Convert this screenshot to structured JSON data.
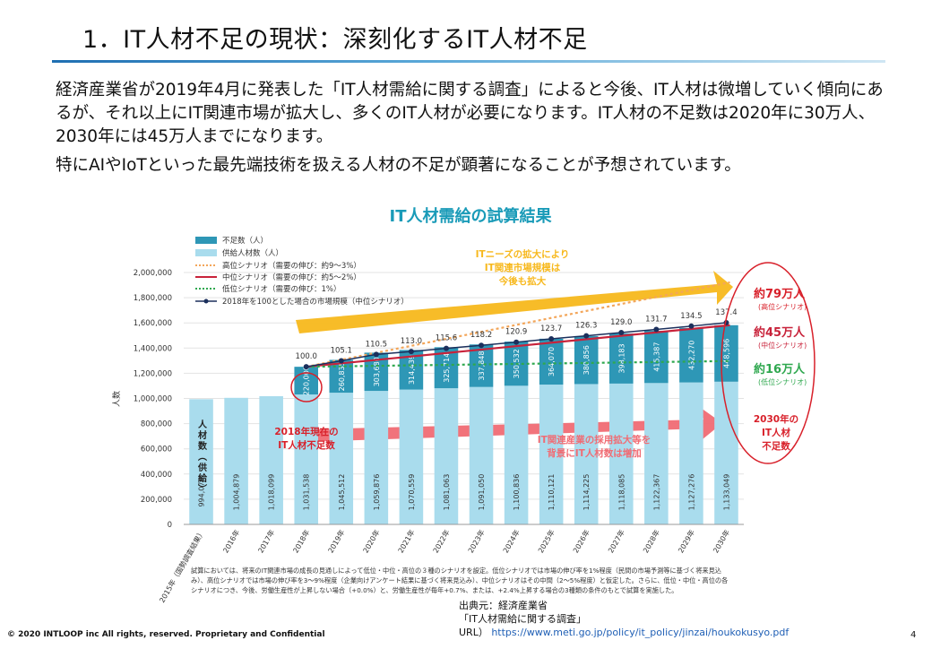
{
  "slide": {
    "title": "1．IT人材不足の現状：深刻化するIT人材不足",
    "intro_paragraph_1": "経済産業省が2019年4月に発表した「IT人材需給に関する調査」によると今後、IT人材は微増していく傾向にあるが、それ以上にIT関連市場が拡大し、多くのIT人材が必要になります。IT人材の不足数は2020年に30万人、2030年には45万人までになります。",
    "intro_paragraph_2": "特にAIやIoTといった最先端技術を扱える人材の不足が顕著になることが予想されています。",
    "footer_copyright": "© 2020 INTLOOP inc All rights, reserved.  Proprietary and Confidential",
    "source_line_1": "出典元：経済産業省",
    "source_line_2": "「IT人材需給に関する調査」",
    "source_url_label": "URL）",
    "source_url": "https://www.meti.go.jp/policy/it_policy/jinzai/houkokusyo.pdf",
    "page_number": "4"
  },
  "chart_data": {
    "type": "bar",
    "title": "IT人材需給の試算結果",
    "ylabel": "人数",
    "ylim": [
      0,
      2000000
    ],
    "yticks": [
      "0",
      "200,000",
      "400,000",
      "600,000",
      "800,000",
      "1,000,000",
      "1,200,000",
      "1,400,000",
      "1,600,000",
      "1,800,000",
      "2,000,000"
    ],
    "categories": [
      "2015年（国勢調査結果）",
      "2016年",
      "2017年",
      "2018年",
      "2019年",
      "2020年",
      "2021年",
      "2022年",
      "2023年",
      "2024年",
      "2025年",
      "2026年",
      "2027年",
      "2028年",
      "2029年",
      "2030年"
    ],
    "supply_labels": [
      "994,070",
      "1,004,879",
      "1,018,099",
      "1,031,538",
      "1,045,512",
      "1,059,876",
      "1,070,559",
      "1,081,063",
      "1,091,050",
      "1,100,836",
      "1,110,121",
      "1,114,225",
      "1,118,085",
      "1,122,367",
      "1,127,276",
      "1,133,049"
    ],
    "shortage_labels": [
      "",
      "",
      "",
      "220,000",
      "260,835",
      "303,680",
      "314,439",
      "325,714",
      "337,848",
      "350,532",
      "364,070",
      "380,856",
      "398,183",
      "415,387",
      "432,270",
      "448,596"
    ],
    "series": [
      {
        "name": "不足数（人）",
        "values": [
          null,
          null,
          null,
          220000,
          260835,
          303680,
          314439,
          325714,
          337848,
          350532,
          364070,
          380856,
          398183,
          415387,
          432270,
          448596
        ]
      },
      {
        "name": "供給人材数（人）",
        "values": [
          994070,
          1004879,
          1018099,
          1031538,
          1045512,
          1059876,
          1070559,
          1081063,
          1091050,
          1100836,
          1110121,
          1114225,
          1118085,
          1122367,
          1127276,
          1133049
        ]
      },
      {
        "name": "2018年を100とした場合の市場規模（中位シナリオ）",
        "values": [
          null,
          null,
          null,
          100.0,
          105.1,
          110.5,
          113.0,
          115.6,
          118.2,
          120.9,
          123.7,
          126.3,
          129.0,
          131.7,
          134.5,
          137.4
        ]
      }
    ],
    "market_labels": [
      "",
      "",
      "",
      "100.0",
      "105.1",
      "110.5",
      "113.0",
      "115.6",
      "118.2",
      "120.9",
      "123.7",
      "126.3",
      "129.0",
      "131.7",
      "134.5",
      "137.4"
    ],
    "scenario_lines_2030": {
      "high": 789000,
      "mid": 449000,
      "low": 164000
    },
    "legend": [
      "不足数（人）",
      "供給人材数（人）",
      "高位シナリオ（需要の伸び：約9～3%）",
      "中位シナリオ（需要の伸び：約5～2%）",
      "低位シナリオ（需要の伸び：1%）",
      "2018年を100とした場合の市場規模（中位シナリオ）"
    ],
    "legend_position": "top-left",
    "annotations": {
      "arrow_top_1": "ITニーズの拡大により",
      "arrow_top_2": "IT関連市場規模は",
      "arrow_top_3": "今後も拡大",
      "arrow_mid_1": "IT関連産業の採用拡大等を",
      "arrow_mid_2": "背景にIT人材数は増加",
      "supply_vertical": "人材数（供給）",
      "shortage_2018_1": "2018年現在の",
      "shortage_2018_2": "IT人材不足数",
      "shortage_2030_1": "2030年の",
      "shortage_2030_2": "IT人材",
      "shortage_2030_3": "不足数",
      "high_label": "約79万人",
      "high_sub": "(高位シナリオ)",
      "mid_label": "約45万人",
      "mid_sub": "(中位シナリオ)",
      "low_label": "約16万人",
      "low_sub": "(低位シナリオ)"
    },
    "footnote_1": "試算においては、将来のIT関連市場の成長の見通しによって低位・中位・高位の３種のシナリオを設定。低位シナリオでは市場の伸び率を1%程度（民間の市場予測等に基づく将来見込",
    "footnote_2": "み）、高位シナリオでは市場の伸び率を3～9%程度（企業向けアンケート結果に基づく将来見込み）、中位シナリオはその中間（2～5%程度）と仮定した。さらに、低位・中位・高位の各",
    "footnote_3": "シナリオにつき、今後、労働生産性が上昇しない場合（+0.0%）と、労働生産性が毎年+0.7%、または、+2.4%上昇する場合の3種類の条件のもとで試算を実施した。",
    "colors": {
      "shortage": "#2e97b6",
      "supply": "#a9dced",
      "high": "#f3a65a",
      "mid": "#c8223a",
      "low": "#2fa84f",
      "market": "#1b2f5c",
      "title": "#1a9bb8",
      "arrow_top": "#f7b81c",
      "arrow_mid": "#f06c74",
      "annotation_red": "#d8202a"
    }
  }
}
